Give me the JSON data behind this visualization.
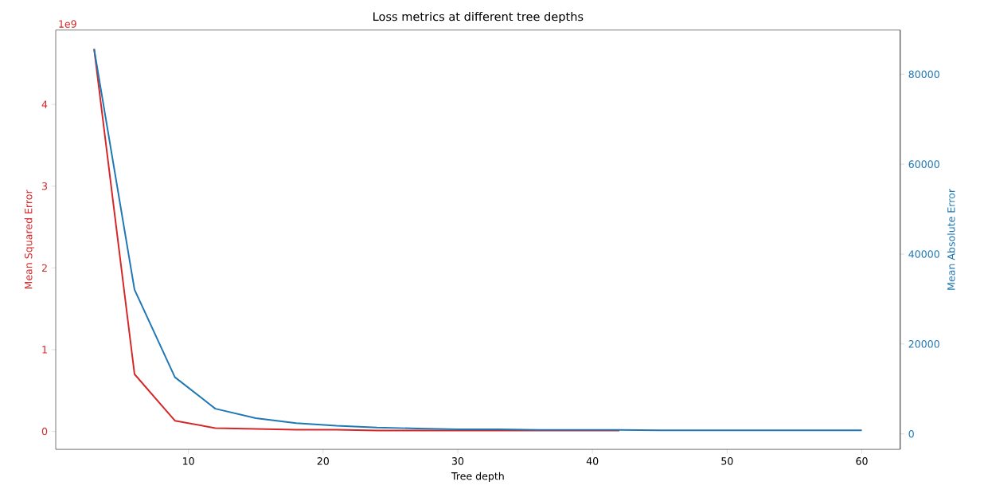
{
  "chart_data": {
    "type": "line",
    "title": "Loss metrics at different tree depths",
    "xlabel": "Tree depth",
    "ylabel": "Mean Squared Error",
    "y2label": "Mean Absolute Error",
    "x": [
      3,
      6,
      9,
      12,
      15,
      18,
      21,
      24,
      27,
      30,
      33,
      36,
      39,
      42,
      45,
      48,
      51,
      54,
      57,
      60
    ],
    "series": [
      {
        "color": "#d62728",
        "values": [
          4.68,
          0.7,
          0.13,
          0.04,
          0.03,
          0.02,
          0.02,
          0.01,
          0.01,
          0.01,
          0.01,
          0.01,
          0.01,
          0.01,
          null,
          null,
          null,
          null,
          null,
          null
        ]
      },
      {
        "color": "#1f77b4",
        "axis": "y2",
        "values": [
          85600,
          32100,
          12600,
          5600,
          3500,
          2400,
          1800,
          1400,
          1200,
          1000,
          1000,
          900,
          900,
          900,
          800,
          800,
          800,
          800,
          800,
          800
        ]
      }
    ],
    "xlim": [
      0.15,
      62.85
    ],
    "xticks": [
      10,
      20,
      30,
      40,
      50,
      60
    ],
    "ylim": [
      -0.22,
      4.91
    ],
    "yticks": [
      0,
      1,
      2,
      3,
      4
    ],
    "y2lim": [
      -3440,
      89840
    ],
    "y2ticks": [
      0,
      20000,
      40000,
      60000,
      80000
    ],
    "annotations": [
      "1e9"
    ]
  }
}
